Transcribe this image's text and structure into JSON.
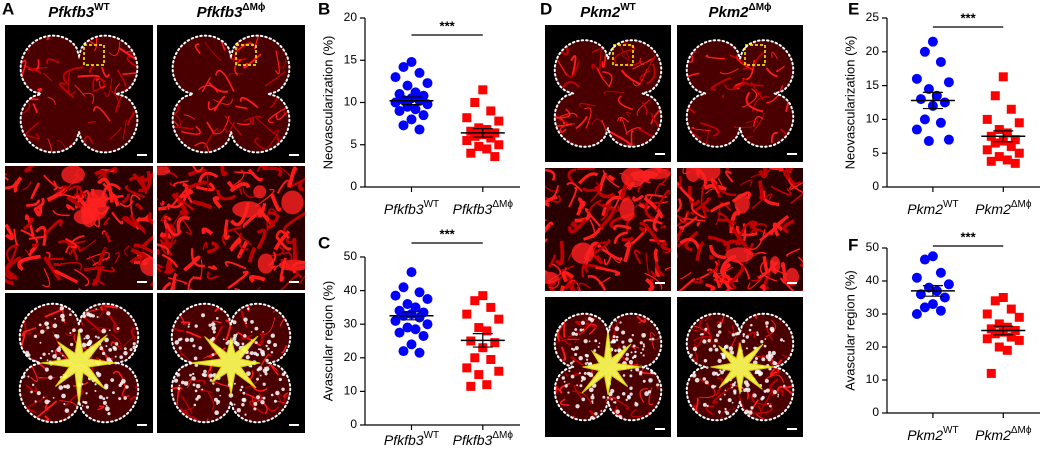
{
  "image_panels": [
    {
      "panel": "A",
      "columns": [
        {
          "gene": "Pfkfb3",
          "sup": "WT"
        },
        {
          "gene": "Pfkfb3",
          "sup": "ΔMϕ"
        }
      ]
    },
    {
      "panel": "D",
      "columns": [
        {
          "gene": "Pkm2",
          "sup": "WT"
        },
        {
          "gene": "Pkm2",
          "sup": "ΔMϕ"
        }
      ]
    }
  ],
  "chart_data": [
    {
      "type": "strip",
      "panel": "B",
      "y_label": "Neovascularization (%)",
      "categories": [
        "Pfkfb3",
        "Pfkfb3"
      ],
      "category_superscripts": [
        "WT",
        "ΔMϕ"
      ],
      "series": [
        {
          "color": "#0000ff",
          "marker": "circle",
          "values": [
            14.8,
            14.2,
            13.5,
            13.0,
            12.3,
            12.0,
            11.2,
            11.0,
            10.8,
            10.5,
            10.3,
            10.2,
            10.0,
            9.8,
            9.5,
            9.2,
            9.0,
            8.5,
            8.0,
            7.3,
            6.8
          ],
          "mean": 10.2,
          "sem": 0.45
        },
        {
          "color": "#ff0000",
          "marker": "square",
          "values": [
            11.5,
            10.0,
            9.0,
            8.2,
            7.8,
            7.0,
            6.8,
            6.6,
            6.4,
            6.2,
            6.0,
            5.8,
            5.5,
            5.0,
            4.8,
            4.5,
            4.0,
            3.6
          ],
          "mean": 6.4,
          "sem": 0.5
        }
      ],
      "ylim": [
        0,
        20
      ],
      "yticks": [
        0,
        5,
        10,
        15,
        20
      ],
      "annotation": "***"
    },
    {
      "type": "strip",
      "panel": "C",
      "y_label": "Avascular region (%)",
      "categories": [
        "Pfkfb3",
        "Pfkfb3"
      ],
      "category_superscripts": [
        "WT",
        "ΔMϕ"
      ],
      "series": [
        {
          "color": "#0000ff",
          "marker": "circle",
          "values": [
            45.5,
            41.0,
            39.5,
            38.5,
            37.5,
            36.0,
            35.0,
            34.0,
            33.5,
            33.0,
            32.5,
            32.0,
            31.0,
            30.0,
            29.0,
            28.5,
            27.5,
            26.5,
            24.0,
            22.0,
            21.5
          ],
          "mean": 32.5,
          "sem": 1.2
        },
        {
          "color": "#ff0000",
          "marker": "square",
          "values": [
            38.5,
            37.0,
            35.0,
            33.0,
            31.5,
            29.0,
            28.0,
            25.0,
            24.5,
            23.0,
            20.0,
            19.5,
            17.0,
            16.0,
            15.0,
            12.0,
            11.5
          ],
          "mean": 25.2,
          "sem": 2.0
        }
      ],
      "ylim": [
        0,
        50
      ],
      "yticks": [
        0,
        10,
        20,
        30,
        40,
        50
      ],
      "annotation": "***"
    },
    {
      "type": "strip",
      "panel": "E",
      "y_label": "Neovascularization (%)",
      "categories": [
        "Pkm2",
        "Pkm2"
      ],
      "category_superscripts": [
        "WT",
        "ΔMϕ"
      ],
      "series": [
        {
          "color": "#0000ff",
          "marker": "circle",
          "values": [
            21.5,
            20.0,
            18.5,
            16.0,
            15.5,
            14.5,
            13.5,
            13.0,
            12.5,
            12.0,
            10.0,
            9.5,
            8.5,
            7.0,
            6.8
          ],
          "mean": 12.8,
          "sem": 1.2
        },
        {
          "color": "#ff0000",
          "marker": "square",
          "values": [
            16.3,
            13.5,
            11.5,
            10.0,
            9.5,
            8.5,
            8.0,
            7.5,
            7.0,
            6.8,
            6.5,
            6.0,
            5.5,
            5.0,
            4.5,
            4.0,
            3.8,
            3.5
          ],
          "mean": 7.5,
          "sem": 0.8
        }
      ],
      "ylim": [
        0,
        25
      ],
      "yticks": [
        0,
        5,
        10,
        15,
        20,
        25
      ],
      "annotation": "***"
    },
    {
      "type": "strip",
      "panel": "F",
      "y_label": "Avascular region (%)",
      "categories": [
        "Pkm2",
        "Pkm2"
      ],
      "category_superscripts": [
        "WT",
        "ΔMϕ"
      ],
      "series": [
        {
          "color": "#0000ff",
          "marker": "circle",
          "values": [
            47.5,
            46.5,
            42.5,
            41.0,
            39.0,
            38.0,
            37.0,
            36.0,
            35.0,
            33.0,
            32.0,
            31.0,
            30.0
          ],
          "mean": 37.0,
          "sem": 1.6
        },
        {
          "color": "#ff0000",
          "marker": "square",
          "values": [
            35.0,
            34.0,
            31.5,
            30.0,
            29.0,
            27.0,
            26.0,
            25.5,
            25.0,
            24.5,
            24.0,
            23.0,
            22.5,
            22.0,
            20.0,
            19.0,
            12.0
          ],
          "mean": 25.0,
          "sem": 1.3
        }
      ],
      "ylim": [
        0,
        50
      ],
      "yticks": [
        0,
        10,
        20,
        30,
        40,
        50
      ],
      "annotation": "***"
    }
  ]
}
